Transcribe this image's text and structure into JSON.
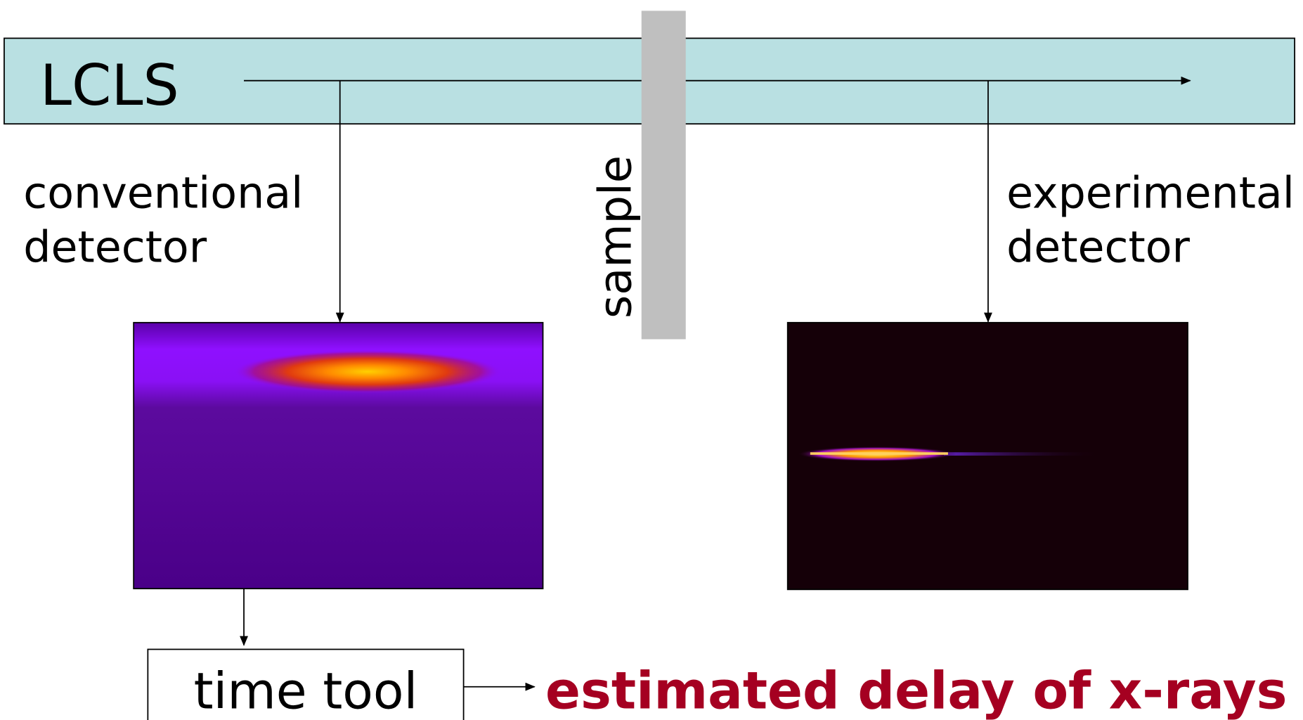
{
  "beamline": {
    "label": "LCLS"
  },
  "sample": {
    "label": "sample"
  },
  "conventional_detector": {
    "label_lines": [
      "conventional",
      "detector"
    ]
  },
  "experimental_detector": {
    "label_lines": [
      "experimental",
      "detector"
    ]
  },
  "time_tool": {
    "label": "time tool"
  },
  "result": {
    "label": "estimated delay of x-rays"
  }
}
